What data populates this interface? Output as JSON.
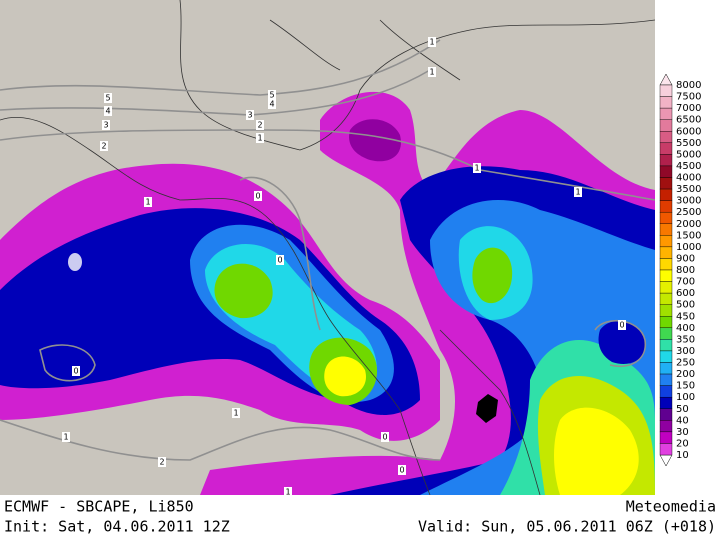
{
  "footer": {
    "product": "ECMWF - SBCAPE, Li850",
    "source": "Meteomedia",
    "init": "Init: Sat, 04.06.2011 12Z",
    "valid": "Valid: Sun, 05.06.2011 06Z (+018)"
  },
  "colorbar": {
    "labels": [
      8000,
      7500,
      7000,
      6500,
      6000,
      5500,
      5000,
      4500,
      4000,
      3500,
      3000,
      2500,
      2000,
      1500,
      1000,
      900,
      800,
      700,
      600,
      500,
      450,
      400,
      350,
      300,
      250,
      200,
      150,
      100,
      50,
      40,
      30,
      20,
      10
    ],
    "colors": [
      "#f7cfdc",
      "#f2b2c6",
      "#eb96b2",
      "#e27a9c",
      "#d85c84",
      "#c83c68",
      "#b0204c",
      "#900828",
      "#a01010",
      "#c42000",
      "#e03c00",
      "#f05800",
      "#f87800",
      "#ff9800",
      "#ffb400",
      "#ffd800",
      "#ffff00",
      "#e4f000",
      "#c4e800",
      "#a0e000",
      "#70d800",
      "#40d850",
      "#30e0a8",
      "#20d8e8",
      "#20b0f4",
      "#2080f0",
      "#1040e0",
      "#0000b8",
      "#600090",
      "#9000a0",
      "#c000c0",
      "#e040e0"
    ]
  },
  "map": {
    "contour_labels": [
      5,
      4,
      3,
      2,
      5,
      4,
      3,
      2,
      1,
      1,
      1,
      1,
      0,
      0,
      0,
      1,
      1,
      2,
      0,
      0,
      1,
      1,
      1,
      0
    ]
  }
}
